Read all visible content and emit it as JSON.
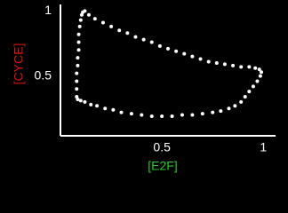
{
  "chart_data": {
    "type": "scatter",
    "x_label": "[E2F]",
    "y_label": "[CYCE]",
    "x_label_color": "#22cc22",
    "y_label_color": "#dd1111",
    "xlim": [
      0,
      1.06
    ],
    "ylim": [
      0.04,
      1.05
    ],
    "xticks": [
      0.5,
      1
    ],
    "yticks": [
      0.5,
      1
    ],
    "series": [
      {
        "color": "#ffffff",
        "x": [
          0.12,
          0.14,
          0.17,
          0.21,
          0.25,
          0.29,
          0.33,
          0.37,
          0.41,
          0.45,
          0.49,
          0.53,
          0.57,
          0.61,
          0.65,
          0.69,
          0.73,
          0.77,
          0.81,
          0.85,
          0.89,
          0.93,
          0.96,
          0.98,
          0.99,
          0.985,
          0.97,
          0.95,
          0.93,
          0.91,
          0.89,
          0.86,
          0.83,
          0.79,
          0.75,
          0.7,
          0.65,
          0.6,
          0.55,
          0.5,
          0.45,
          0.4,
          0.35,
          0.3,
          0.26,
          0.22,
          0.18,
          0.15,
          0.12,
          0.1,
          0.085,
          0.08,
          0.08,
          0.08,
          0.08,
          0.085,
          0.085,
          0.09,
          0.09,
          0.09,
          0.095,
          0.1,
          0.105,
          0.11
        ],
        "y": [
          1.0,
          0.97,
          0.94,
          0.91,
          0.88,
          0.85,
          0.83,
          0.8,
          0.78,
          0.76,
          0.73,
          0.71,
          0.69,
          0.67,
          0.65,
          0.63,
          0.61,
          0.6,
          0.59,
          0.58,
          0.57,
          0.57,
          0.56,
          0.55,
          0.53,
          0.5,
          0.46,
          0.42,
          0.38,
          0.34,
          0.3,
          0.27,
          0.25,
          0.23,
          0.22,
          0.21,
          0.2,
          0.2,
          0.19,
          0.19,
          0.19,
          0.2,
          0.21,
          0.22,
          0.24,
          0.25,
          0.27,
          0.28,
          0.3,
          0.31,
          0.32,
          0.34,
          0.4,
          0.46,
          0.52,
          0.58,
          0.64,
          0.7,
          0.76,
          0.82,
          0.88,
          0.93,
          0.97,
          0.99
        ]
      }
    ]
  }
}
